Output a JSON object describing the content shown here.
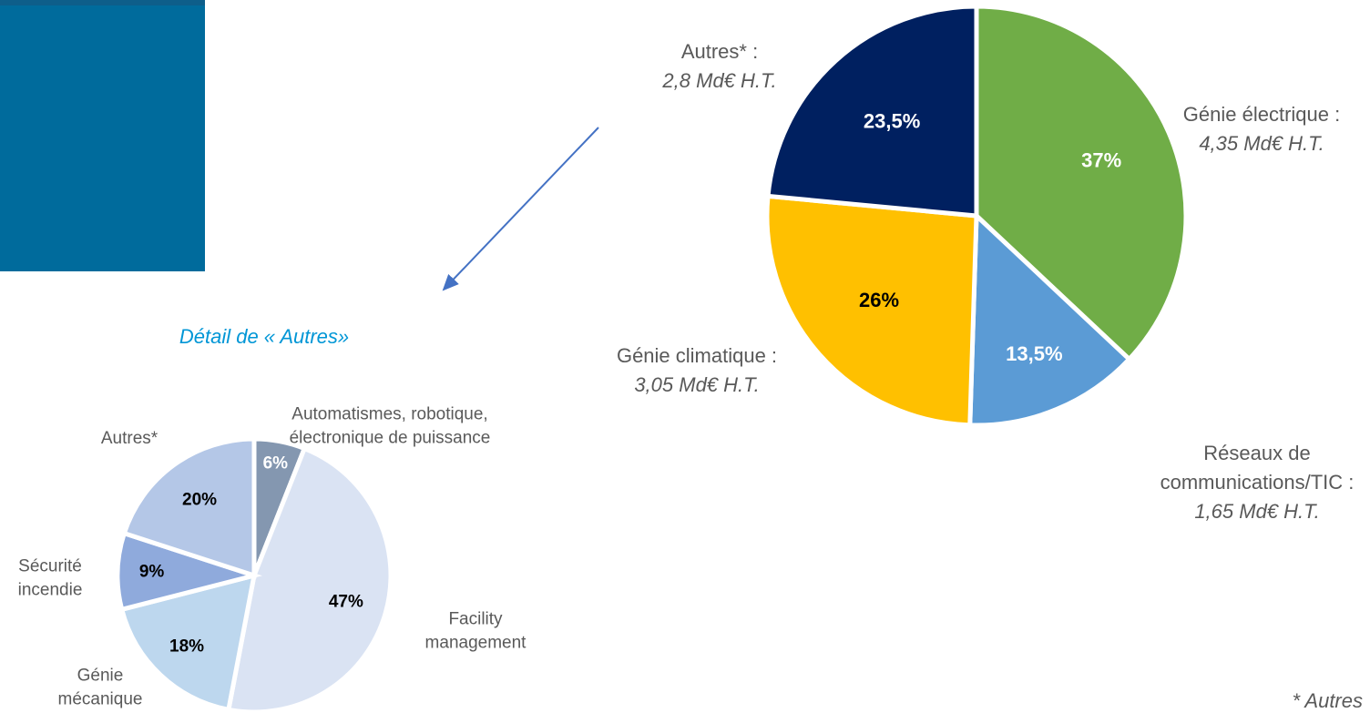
{
  "chart_data": [
    {
      "type": "pie",
      "categories": [
        "Génie électrique :",
        "Réseaux de communications/TIC :",
        "Génie climatique :",
        "Autres* :"
      ],
      "detail_labels": [
        "4,35 Md€ H.T.",
        "1,65 Md€ H.T.",
        "3,05 Md€ H.T.",
        "2,8 Md€ H.T."
      ],
      "values": [
        37,
        13.5,
        26,
        23.5
      ],
      "value_labels": [
        "37%",
        "13,5%",
        "26%",
        "23,5%"
      ],
      "colors": [
        "#70ad47",
        "#5b9bd5",
        "#ffc000",
        "#002060"
      ],
      "value_label_colors": [
        "#ffffff",
        "#ffffff",
        "#000000",
        "#ffffff"
      ]
    },
    {
      "type": "pie",
      "title": "Détail de « Autres»",
      "categories": [
        "Automatismes, robotique, électronique de puissance",
        "Facility management",
        "Génie mécanique",
        "Sécurité incendie",
        "Autres*"
      ],
      "values": [
        6,
        47,
        18,
        9,
        20
      ],
      "value_labels": [
        "6%",
        "47%",
        "18%",
        "9%",
        "20%"
      ],
      "colors": [
        "#8497b0",
        "#dae3f3",
        "#bdd7ee",
        "#8faadc",
        "#b4c7e7"
      ],
      "value_label_colors": [
        "#ffffff",
        "#000000",
        "#000000",
        "#000000",
        "#000000"
      ]
    }
  ],
  "footnote": "* Autres"
}
